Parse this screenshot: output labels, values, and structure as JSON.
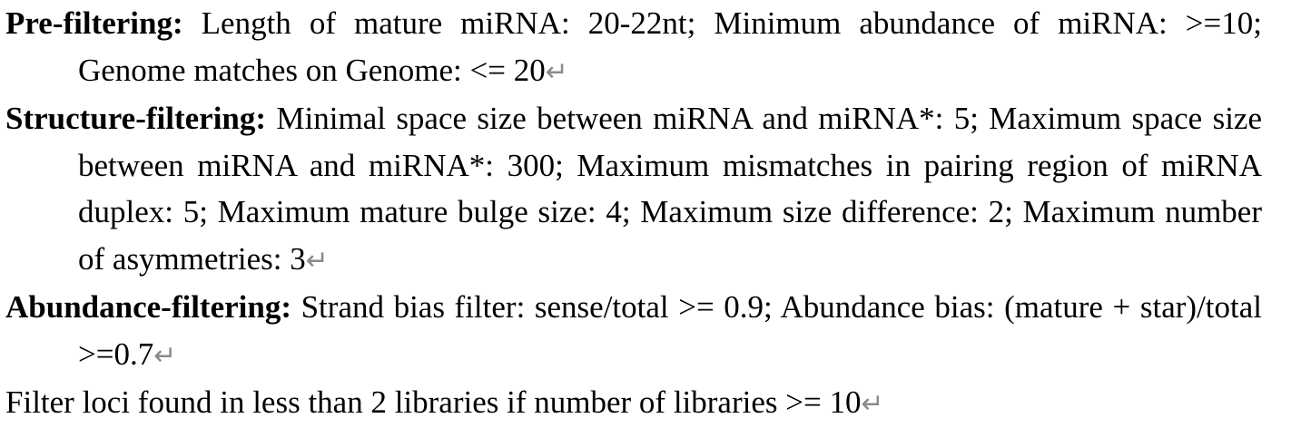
{
  "paragraphs": [
    {
      "label": "Pre-filtering:",
      "text": " Length of mature miRNA: 20-22nt; Minimum abundance of miRNA: >=10; Genome matches on Genome: <= 20"
    },
    {
      "label": "Structure-filtering:",
      "text": " Minimal space size between miRNA and miRNA*: 5; Maximum space size between miRNA and miRNA*: 300; Maximum mismatches in pairing region of miRNA duplex: 5; Maximum mature bulge size: 4; Maximum size difference: 2; Maximum number of asymmetries: 3"
    },
    {
      "label": "Abundance-filtering:",
      "text": " Strand bias filter: sense/total >= 0.9; Abundance bias: (mature + star)/total >=0.7"
    },
    {
      "text": "Filter loci found in less than 2 libraries if number of libraries >= 10"
    }
  ],
  "paragraph_mark": "↵"
}
